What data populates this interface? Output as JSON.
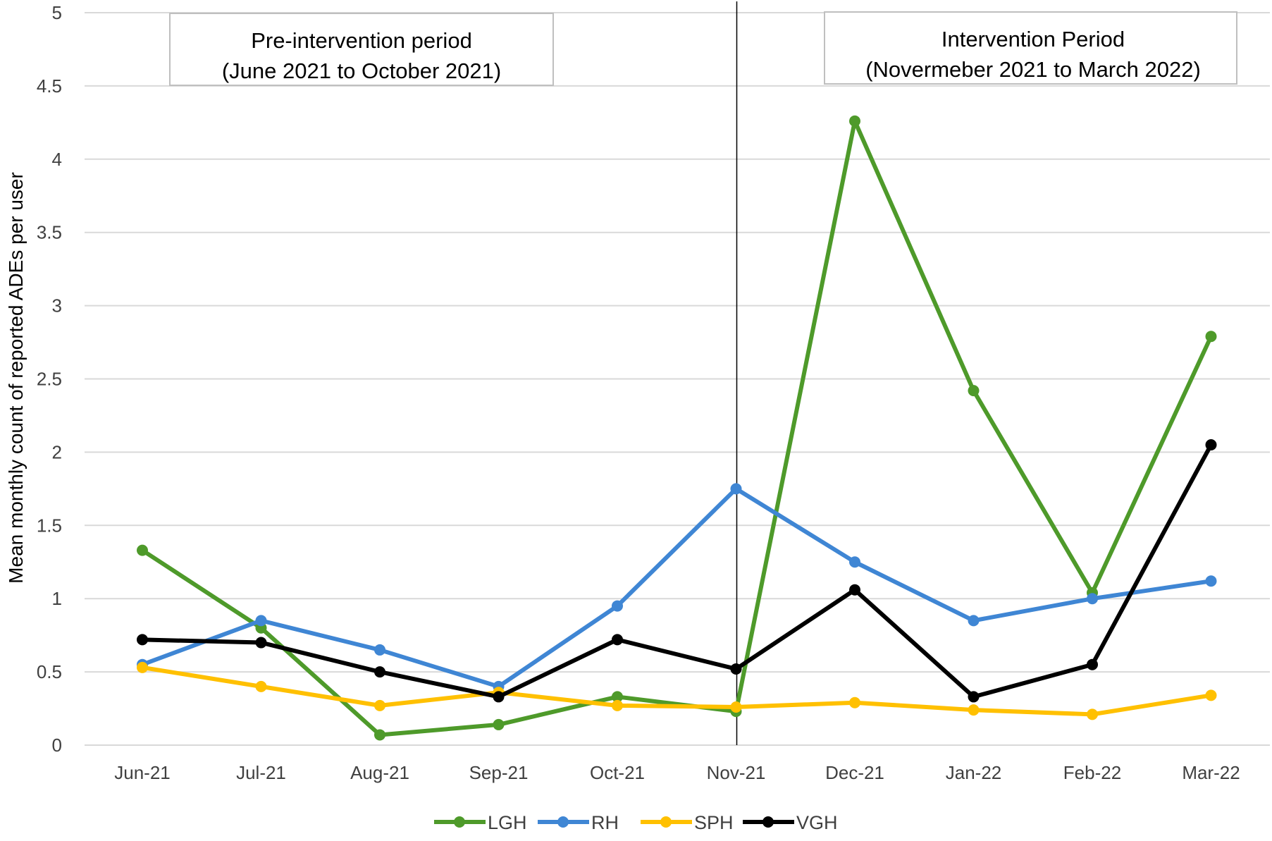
{
  "chart_data": {
    "type": "line",
    "title": "",
    "xlabel": "",
    "ylabel": "Mean monthly count of reported ADEs per user",
    "categories": [
      "Jun-21",
      "Jul-21",
      "Aug-21",
      "Sep-21",
      "Oct-21",
      "Nov-21",
      "Dec-21",
      "Jan-22",
      "Feb-22",
      "Mar-22"
    ],
    "ylim": [
      0,
      5
    ],
    "yticks": [
      0,
      0.5,
      1,
      1.5,
      2,
      2.5,
      3,
      3.5,
      4,
      4.5,
      5
    ],
    "ytick_labels": [
      "0",
      "0.5",
      "1",
      "1.5",
      "2",
      "2.5",
      "3",
      "3.5",
      "4",
      "4.5",
      "5"
    ],
    "grid": true,
    "legend_position": "bottom",
    "series": [
      {
        "name": "LGH",
        "color": "#4E9A2A",
        "values": [
          1.33,
          0.8,
          0.07,
          0.14,
          0.33,
          0.23,
          4.26,
          2.42,
          1.04,
          2.79
        ]
      },
      {
        "name": "RH",
        "color": "#3F86D4",
        "values": [
          0.55,
          0.85,
          0.65,
          0.4,
          0.95,
          1.75,
          1.25,
          0.85,
          1.0,
          1.12
        ]
      },
      {
        "name": "SPH",
        "color": "#FFC000",
        "values": [
          0.53,
          0.4,
          0.27,
          0.36,
          0.27,
          0.26,
          0.29,
          0.24,
          0.21,
          0.34
        ]
      },
      {
        "name": "VGH",
        "color": "#000000",
        "values": [
          0.72,
          0.7,
          0.5,
          0.33,
          0.72,
          0.52,
          1.06,
          0.33,
          0.55,
          2.05
        ]
      }
    ],
    "divider_between": [
      "Oct-21",
      "Nov-21"
    ],
    "annotations": [
      {
        "line1": "Pre-intervention period",
        "line2": "(June 2021 to October 2021)"
      },
      {
        "line1": "Intervention Period",
        "line2": "(Novermeber 2021 to March 2022)"
      }
    ]
  }
}
